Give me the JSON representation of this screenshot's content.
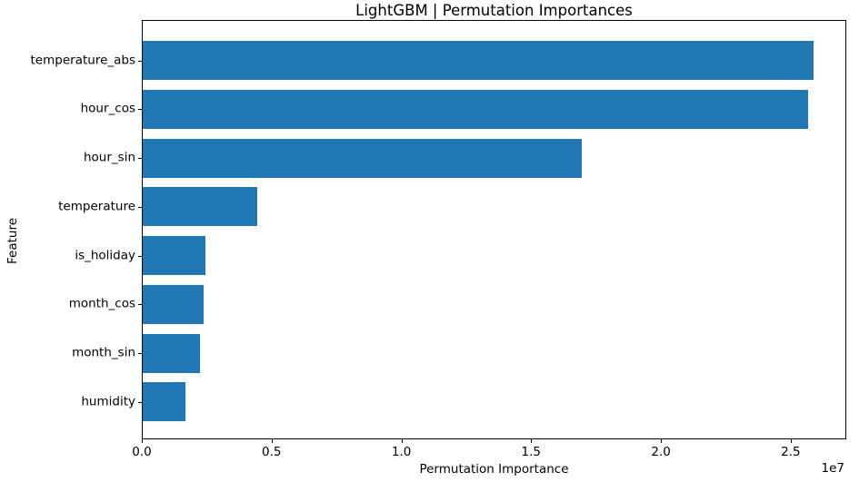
{
  "chart_data": {
    "type": "bar",
    "orientation": "horizontal",
    "title": "LightGBM | Permutation Importances",
    "xlabel": "Permutation Importance",
    "ylabel": "Feature",
    "categories": [
      "temperature_abs",
      "hour_cos",
      "hour_sin",
      "temperature",
      "is_holiday",
      "month_cos",
      "month_sin",
      "humidity"
    ],
    "values": [
      25850000,
      25640000,
      16910000,
      4400000,
      2420000,
      2340000,
      2220000,
      1660000
    ],
    "xlim": [
      0,
      27140000
    ],
    "x_ticks": [
      0,
      5000000,
      10000000,
      15000000,
      20000000,
      25000000
    ],
    "x_tick_labels": [
      "0.0",
      "0.5",
      "1.0",
      "1.5",
      "2.0",
      "2.5"
    ],
    "x_offset_text": "1e7",
    "bar_color": "#1f77b4",
    "grid": false,
    "legend_position": "none"
  }
}
